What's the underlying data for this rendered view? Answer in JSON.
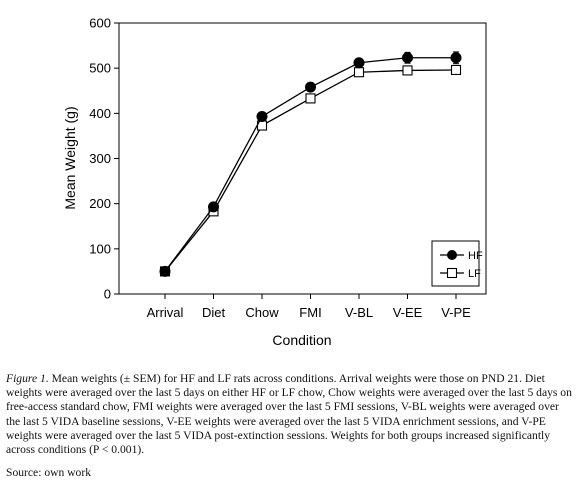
{
  "chart_data": {
    "type": "line",
    "categories": [
      "Arrival",
      "Diet",
      "Chow",
      "FMI",
      "V-BL",
      "V-EE",
      "V-PE"
    ],
    "xlabel": "Condition",
    "ylabel": "Mean Weight (g)",
    "ylim": [
      0,
      600
    ],
    "yticks": [
      0,
      100,
      200,
      300,
      400,
      500,
      600
    ],
    "legend_placement": "bottom-right",
    "series": [
      {
        "name": "HF",
        "marker": "filled-circle",
        "values": [
          50,
          193,
          393,
          458,
          512,
          523,
          523
        ],
        "sem": [
          2,
          3,
          5,
          6,
          8,
          12,
          13
        ]
      },
      {
        "name": "LF",
        "marker": "open-square",
        "values": [
          50,
          183,
          373,
          433,
          491,
          495,
          496
        ],
        "sem": [
          2,
          3,
          5,
          6,
          7,
          8,
          9
        ]
      }
    ]
  },
  "caption": {
    "figure_label": "Figure 1.",
    "text": " Mean weights (± SEM) for HF and LF rats across conditions. Arrival weights were those on PND 21. Diet weights were averaged over the last 5 days on either HF or LF chow, Chow weights were averaged over the last 5 days on free-access standard chow, FMI weights were averaged over the last 5 FMI sessions, V-BL weights were averaged over the last 5 VIDA baseline sessions, V-EE weights were averaged over the last 5 VIDA enrichment sessions, and V-PE weights were averaged over the last 5 VIDA post-extinction sessions. Weights for both groups increased significantly across conditions (P < 0.001)."
  },
  "source": "Source: own work"
}
